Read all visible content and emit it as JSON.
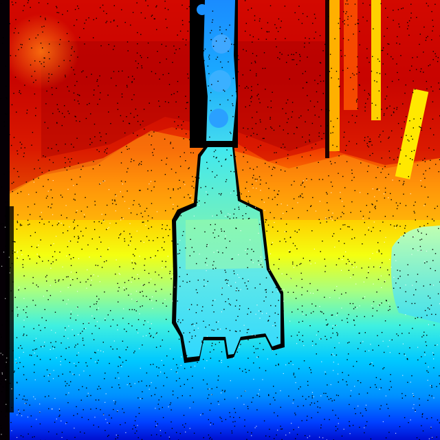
{
  "image": {
    "kind": "depth-map",
    "colormap": "jet",
    "colormap_stops": [
      "#00008f",
      "#0050ff",
      "#00d4ff",
      "#8effa0",
      "#ffff00",
      "#ff8a00",
      "#ff2a00",
      "#8a0000"
    ],
    "noise_color": "#000000"
  }
}
